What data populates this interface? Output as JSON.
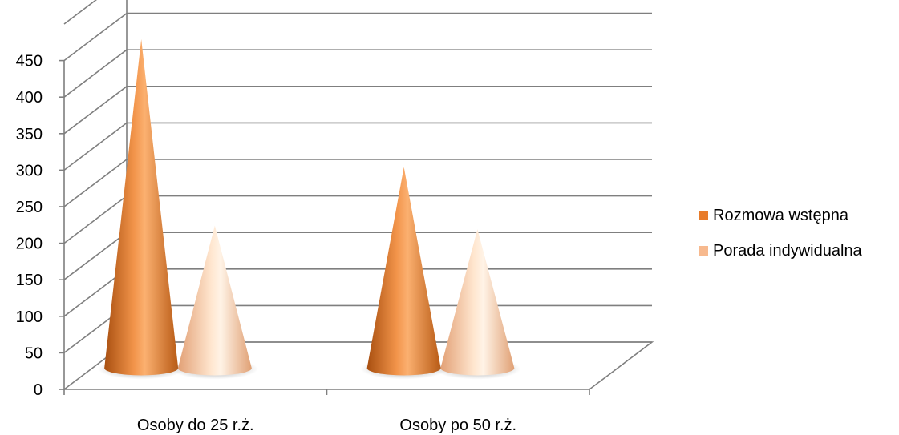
{
  "chart_data": {
    "type": "bar",
    "style": "3d-cone",
    "title": "",
    "xlabel": "",
    "ylabel": "",
    "categories": [
      "Osoby do 25 r.ż.",
      "Osoby po 50 r.ż."
    ],
    "series": [
      {
        "name": "Rozmowa wstępna",
        "values": [
          450,
          275
        ],
        "color": "#E87C2B"
      },
      {
        "name": "Porada indywidualna",
        "values": [
          195,
          190
        ],
        "color": "#F7B98E"
      }
    ],
    "ylim": [
      0,
      450
    ],
    "y_ticks": [
      "0",
      "50",
      "100",
      "150",
      "200",
      "250",
      "300",
      "350",
      "400",
      "450"
    ],
    "grid": true,
    "legend_position": "right"
  }
}
